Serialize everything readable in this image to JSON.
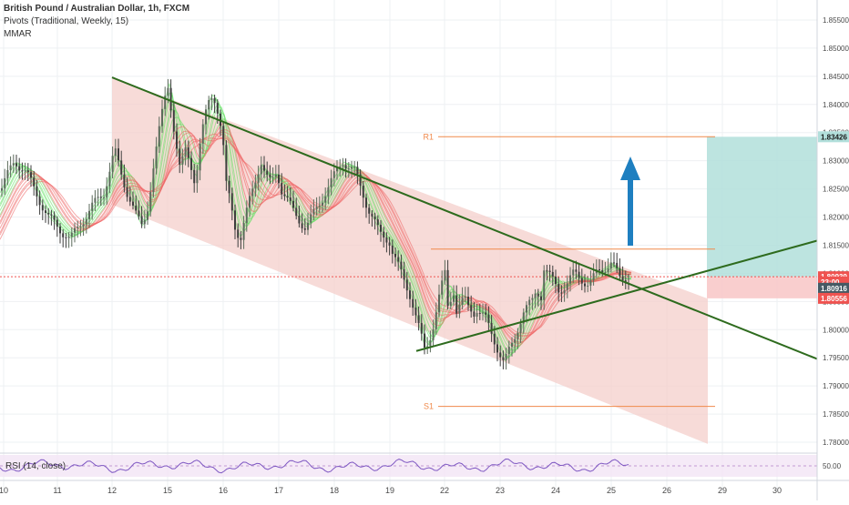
{
  "legend": {
    "title": "British Pound / Australian Dollar, 1h, FXCM",
    "pivots": "Pivots (Traditional, Weekly, 15)",
    "mmar": "MMAR"
  },
  "rsi_label": "RSI (14, close)",
  "rsi_value": "50.00",
  "price_labels": [
    {
      "text": "1.83426",
      "price": 1.83426,
      "bg": "#b2dfdb"
    },
    {
      "text": "1.80939",
      "price": 1.80939,
      "bg": "#ef5350"
    },
    {
      "text": "23:00",
      "price": 1.80845,
      "bg": "#ef5350"
    },
    {
      "text": "1.80916",
      "price": 1.80735,
      "bg": "#455a64"
    },
    {
      "text": "1.80556",
      "price": 1.80556,
      "bg": "#ef5350"
    }
  ],
  "pivot_labels": [
    {
      "name": "R1",
      "price": 1.83426
    },
    {
      "name": "S1",
      "price": 1.78636
    }
  ],
  "colors": {
    "channel": "#2e6b1e",
    "channel_fill": "#f4cfcb",
    "target_fill": "#b2dfdb",
    "stop_fill": "#f8c6c6",
    "pivot": "#f08a4b",
    "arrow": "#1e7fc0",
    "ribbon_up": "#5ee05e",
    "ribbon_down": "#ef6060"
  },
  "chart_data": {
    "type": "candlestick",
    "symbol": "British Pound / Australian Dollar",
    "interval": "1h",
    "y_ticks": [
      1.855,
      1.85,
      1.845,
      1.84,
      1.835,
      1.83,
      1.825,
      1.82,
      1.815,
      1.81,
      1.805,
      1.8,
      1.795,
      1.79,
      1.785,
      1.78
    ],
    "y_tick_labels": [
      "1.85500",
      "1.85000",
      "1.84500",
      "1.84000",
      "1.83500",
      "1.83000",
      "1.82500",
      "1.82000",
      "1.81500",
      "1.81000",
      "1.80500",
      "1.80000",
      "1.79500",
      "1.79000",
      "1.78500",
      "1.78000"
    ],
    "ylim": [
      1.7775,
      1.8585
    ],
    "x_labels": [
      "10",
      "11",
      "12",
      "15",
      "16",
      "17",
      "18",
      "19",
      "22",
      "23",
      "24",
      "25",
      "26",
      "29",
      "30"
    ],
    "price_path": [
      [
        1.832,
        1.828,
        1.825,
        1.823,
        1.82,
        1.818,
        1.822,
        1.829,
        1.835,
        1.841,
        1.845
      ],
      [
        1.841,
        1.834,
        1.828,
        1.832,
        1.83,
        1.826,
        1.833,
        1.838,
        1.842,
        1.841,
        1.836,
        1.829
      ],
      [
        1.826,
        1.823,
        1.818,
        1.816,
        1.82,
        1.824,
        1.827,
        1.83,
        1.827,
        1.826,
        1.828,
        1.826
      ],
      [
        1.825,
        1.821,
        1.818,
        1.822,
        1.826,
        1.83,
        1.828,
        1.822,
        1.817,
        1.814
      ],
      [
        1.816,
        1.812,
        1.809,
        1.806,
        1.801,
        1.796,
        1.8,
        1.806,
        1.811,
        1.807,
        1.805,
        1.804,
        1.803
      ],
      [
        1.804,
        1.803,
        1.805,
        1.804,
        1.802,
        1.798,
        1.794,
        1.798,
        1.803,
        1.805,
        1.806
      ],
      [
        1.807,
        1.811,
        1.809,
        1.807,
        1.808,
        1.81,
        1.809,
        1.808,
        1.81,
        1.811,
        1.812,
        1.809
      ]
    ],
    "channel": {
      "upper": [
        [
          "12",
          1.8448
        ],
        [
          "25 + 1.4d",
          1.795
        ]
      ],
      "lower_shade": [
        [
          "12",
          1.8222
        ],
        [
          "28",
          1.7797
        ]
      ],
      "support": [
        [
          "19 + 0.5d",
          1.7962
        ],
        [
          "end",
          1.8158
        ]
      ]
    },
    "pivots": [
      {
        "name": "R1",
        "value": 1.83426
      },
      {
        "name": "S1",
        "value": 1.78636
      }
    ],
    "current_price": 1.80939,
    "target": 1.83426,
    "stop": 1.80556,
    "rsi": {
      "level": 50.0
    }
  }
}
